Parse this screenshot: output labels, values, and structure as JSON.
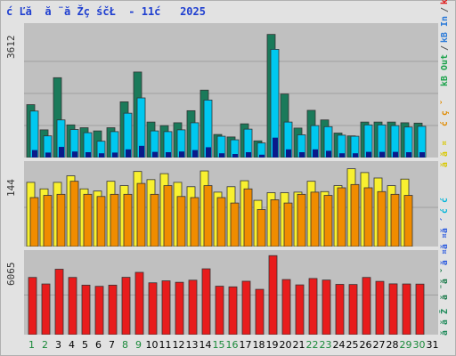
{
  "title": "ć Ľă  ă ¨ă Žç śčŁ  - 11ć   2025",
  "x_labels": [
    "1",
    "2",
    "3",
    "4",
    "5",
    "6",
    "7",
    "8",
    "9",
    "10",
    "11",
    "12",
    "13",
    "14",
    "15",
    "16",
    "17",
    "18",
    "19",
    "20",
    "21",
    "22",
    "23",
    "24",
    "25",
    "26",
    "27",
    "28",
    "29",
    "30",
    "31"
  ],
  "weekend_days": [
    1,
    2,
    8,
    9,
    15,
    16,
    22,
    23,
    29,
    30
  ],
  "legend": [
    {
      "text": "ă  ă Ž",
      "color": "#1e8a5a"
    },
    {
      "text": "ă ¨ă ˇ",
      "color": "#1a7a4a"
    },
    {
      "text": "ă ¤ă ¤ă ´",
      "color": "#2a5adf"
    },
    {
      "text": "ć   ć   ",
      "color": "#00b4d8"
    },
    {
      "text": "ă   ă ¤",
      "color": "#d8c800"
    },
    {
      "text": "ć   ç ˇ",
      "color": "#e08a00"
    },
    {
      "text": "kB Out",
      "color": "#1aa24a"
    },
    {
      "text": "/",
      "color": "#555555"
    },
    {
      "text": "kB In",
      "color": "#2a7ad8"
    },
    {
      "text": "/",
      "color": "#555555"
    },
    {
      "text": "kB F",
      "color": "#e01818"
    }
  ],
  "chart_data": [
    {
      "type": "bar",
      "panel": "top",
      "ymax_label": "3612",
      "ylim": [
        0,
        3612
      ],
      "categories": [
        "1",
        "2",
        "3",
        "4",
        "5",
        "6",
        "7",
        "8",
        "9",
        "10",
        "11",
        "12",
        "13",
        "14",
        "15",
        "16",
        "17",
        "18",
        "19",
        "20",
        "21",
        "22",
        "23",
        "24",
        "25",
        "26",
        "27",
        "28",
        "29",
        "30",
        "31"
      ],
      "series": [
        {
          "color": "#1a7a5a",
          "values": [
            1490,
            780,
            2250,
            920,
            840,
            750,
            840,
            1570,
            2410,
            1000,
            900,
            980,
            1320,
            1900,
            650,
            580,
            950,
            470,
            3470,
            1790,
            830,
            1330,
            1060,
            690,
            610,
            1000,
            1000,
            1000,
            980,
            970,
            0
          ]
        },
        {
          "color": "#00c8f0",
          "values": [
            1310,
            610,
            1060,
            790,
            700,
            460,
            730,
            1250,
            1680,
            750,
            730,
            780,
            980,
            1620,
            600,
            500,
            800,
            410,
            3050,
            1000,
            640,
            900,
            870,
            630,
            600,
            920,
            920,
            900,
            860,
            880,
            0
          ]
        },
        {
          "color": "#0a1a8a",
          "values": [
            210,
            140,
            300,
            170,
            150,
            120,
            140,
            230,
            330,
            160,
            150,
            170,
            210,
            290,
            120,
            100,
            150,
            80,
            560,
            230,
            150,
            230,
            190,
            120,
            120,
            160,
            160,
            160,
            150,
            150,
            0
          ]
        }
      ]
    },
    {
      "type": "bar",
      "panel": "middle",
      "ymax_label": "144",
      "ylim": [
        0,
        144
      ],
      "categories": [
        "1",
        "2",
        "3",
        "4",
        "5",
        "6",
        "7",
        "8",
        "9",
        "10",
        "11",
        "12",
        "13",
        "14",
        "15",
        "16",
        "17",
        "18",
        "19",
        "20",
        "21",
        "22",
        "23",
        "24",
        "25",
        "26",
        "27",
        "28",
        "29",
        "30",
        "31"
      ],
      "series": [
        {
          "color": "#f8f030",
          "values": [
            118,
            106,
            118,
            130,
            106,
            102,
            120,
            112,
            138,
            123,
            134,
            118,
            110,
            139,
            100,
            110,
            121,
            85,
            99,
            99,
            100,
            120,
            101,
            112,
            143,
            136,
            126,
            112,
            124,
            0,
            0
          ]
        },
        {
          "color": "#f08c00",
          "values": [
            90,
            94,
            96,
            120,
            96,
            92,
            96,
            96,
            116,
            96,
            112,
            92,
            90,
            112,
            90,
            80,
            106,
            68,
            86,
            80,
            96,
            100,
            94,
            108,
            114,
            108,
            101,
            96,
            94,
            0,
            0
          ]
        }
      ]
    },
    {
      "type": "bar",
      "panel": "bottom",
      "ymax_label": "6065",
      "ylim": [
        0,
        6065
      ],
      "categories": [
        "1",
        "2",
        "3",
        "4",
        "5",
        "6",
        "7",
        "8",
        "9",
        "10",
        "11",
        "12",
        "13",
        "14",
        "15",
        "16",
        "17",
        "18",
        "19",
        "20",
        "21",
        "22",
        "23",
        "24",
        "25",
        "26",
        "27",
        "28",
        "29",
        "30",
        "31"
      ],
      "series": [
        {
          "color": "#e81c1c",
          "values": [
            4380,
            3880,
            5010,
            4380,
            3790,
            3700,
            3790,
            4390,
            4770,
            3970,
            4120,
            4010,
            4170,
            5040,
            3710,
            3660,
            4090,
            3470,
            6050,
            4220,
            3810,
            4300,
            4180,
            3850,
            3840,
            4380,
            4080,
            3890,
            3880,
            3870,
            0
          ]
        }
      ]
    }
  ]
}
